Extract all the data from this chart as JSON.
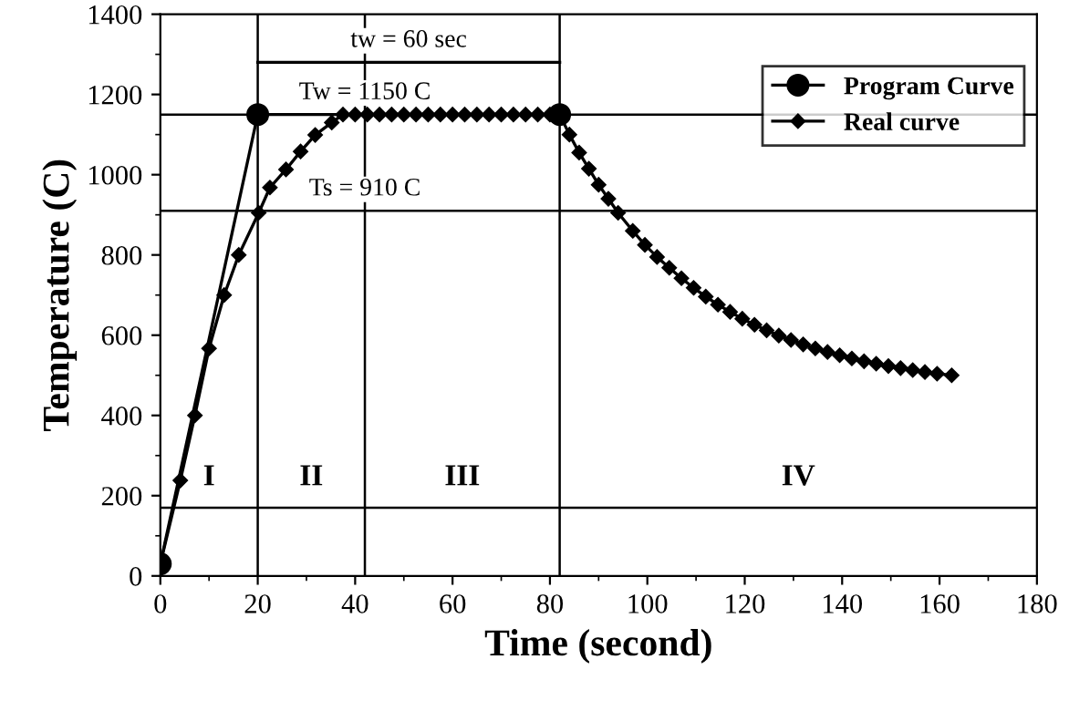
{
  "chart_data": {
    "type": "line",
    "xlabel": "Time (second)",
    "ylabel": "Temperature (C)",
    "xlim": [
      0,
      180
    ],
    "ylim": [
      0,
      1400
    ],
    "xticks": [
      0,
      20,
      40,
      60,
      80,
      100,
      120,
      140,
      160,
      180
    ],
    "yticks": [
      0,
      200,
      400,
      600,
      800,
      1000,
      1200,
      1400
    ],
    "grid": false,
    "legend": "top right",
    "series": [
      {
        "name": "Program Curve",
        "color": "#000000",
        "marker": "circle",
        "x": [
          0,
          20,
          82
        ],
        "values": [
          30,
          1150,
          1150
        ]
      },
      {
        "name": "Real curve",
        "color": "#000000",
        "marker": "diamond",
        "x": [
          0,
          4.1,
          7.1,
          10,
          13.1,
          16.1,
          20.2,
          22.5,
          25.8,
          28.8,
          31.8,
          35.2,
          37.5,
          40,
          42.5,
          45,
          47.5,
          50,
          52.5,
          55,
          57.5,
          60,
          62.5,
          65,
          67.5,
          70,
          72.5,
          75,
          77.5,
          80,
          82,
          84,
          86,
          88,
          90,
          92,
          94,
          97,
          99.5,
          102,
          104.5,
          107,
          109.5,
          112,
          114.5,
          117,
          119.5,
          122,
          124.5,
          127,
          129.5,
          132,
          134.5,
          137,
          139.5,
          142,
          144.5,
          147,
          149.5,
          152,
          154.5,
          157,
          159.5,
          162.5
        ],
        "values": [
          30,
          238,
          400,
          567,
          700,
          800,
          905,
          968,
          1013,
          1058,
          1099,
          1130,
          1150,
          1150,
          1150,
          1150,
          1150,
          1150,
          1150,
          1150,
          1150,
          1150,
          1150,
          1150,
          1150,
          1150,
          1150,
          1150,
          1150,
          1150,
          1150,
          1100,
          1055,
          1015,
          975,
          940,
          905,
          860,
          825,
          795,
          768,
          742,
          718,
          696,
          676,
          658,
          641,
          626,
          612,
          599,
          588,
          577,
          567,
          558,
          550,
          542,
          535,
          529,
          523,
          518,
          513,
          508,
          504,
          500
        ]
      },
      {
        "name": "tw = 60 sec",
        "color": "#000000",
        "marker": "none",
        "x": [
          20,
          82
        ],
        "values": [
          1280,
          1280
        ]
      }
    ],
    "ref_lines": [
      {
        "axis": "y",
        "value": 1150,
        "label": "Tw = 1150 C"
      },
      {
        "axis": "y",
        "value": 910,
        "label": "Ts = 910 C"
      },
      {
        "axis": "y",
        "value": 170
      },
      {
        "axis": "x",
        "value": 20
      },
      {
        "axis": "x",
        "value": 42
      },
      {
        "axis": "x",
        "value": 82
      }
    ],
    "annotations": [
      "I",
      "II",
      "III",
      "IV"
    ]
  }
}
